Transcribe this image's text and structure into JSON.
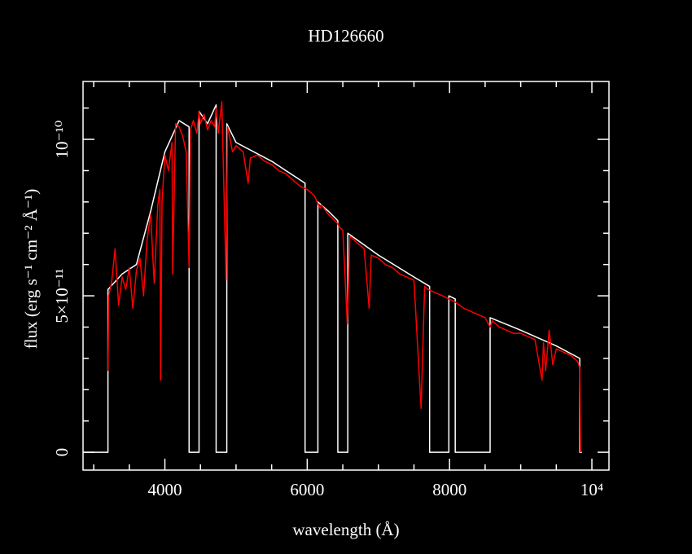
{
  "chart_data": {
    "type": "line",
    "title": "HD126660",
    "x_label": "wavelength (Å)",
    "y_label": "flux (erg s⁻¹ cm⁻² Å⁻¹)",
    "xlim": [
      2850,
      10240
    ],
    "ylim": [
      -5.7e-12,
      1.185e-10
    ],
    "xticks": [
      4000,
      6000,
      8000,
      {
        "value": 10000,
        "label": "10⁴"
      }
    ],
    "xminorticks": [
      3000,
      3500,
      4500,
      5000,
      5500,
      6500,
      7000,
      7500,
      8500,
      9000,
      9500
    ],
    "yticks": [
      0,
      {
        "value": 5e-11,
        "label": "5×10⁻¹¹"
      },
      {
        "value": 1e-10,
        "label": "10⁻¹⁰"
      }
    ],
    "yminorticks": [
      1e-11,
      2e-11,
      3e-11,
      4e-11,
      6e-11,
      7e-11,
      8e-11,
      9e-11,
      1.1e-10
    ],
    "series": [
      {
        "color": "#ffffff",
        "x": [
          2860,
          3200,
          3200,
          3400,
          3600,
          3800,
          4000,
          4200,
          4340,
          4340,
          4480,
          4480,
          4600,
          4720,
          4720,
          4870,
          4870,
          5000,
          5500,
          5970,
          5970,
          6150,
          6150,
          6300,
          6430,
          6430,
          6570,
          6570,
          7000,
          7500,
          7720,
          7720,
          7990,
          7990,
          8080,
          8080,
          8570,
          8570,
          9000,
          9500,
          9830,
          9830,
          9860
        ],
        "values": [
          0,
          0,
          5.2e-11,
          5.7e-11,
          6e-11,
          7.7e-11,
          9.6e-11,
          1.06e-10,
          1.04e-10,
          0,
          0,
          1.09e-10,
          1.05e-10,
          1.11e-10,
          0,
          0,
          1.05e-10,
          9.9e-11,
          9.3e-11,
          8.6e-11,
          0,
          0,
          8e-11,
          7.7e-11,
          7.4e-11,
          0,
          0,
          7e-11,
          6.3e-11,
          5.6e-11,
          5.3e-11,
          0,
          0,
          5e-11,
          4.9e-11,
          0,
          0,
          4.3e-11,
          3.9e-11,
          3.4e-11,
          3e-11,
          0,
          0
        ]
      },
      {
        "color": "#ff0000",
        "x": [
          3200,
          3210,
          3250,
          3300,
          3350,
          3400,
          3450,
          3500,
          3550,
          3600,
          3650,
          3700,
          3750,
          3800,
          3850,
          3900,
          3930,
          3940,
          3960,
          4000,
          4050,
          4100,
          4110,
          4150,
          4200,
          4250,
          4300,
          4340,
          4360,
          4400,
          4450,
          4480,
          4500,
          4550,
          4600,
          4650,
          4700,
          4720,
          4750,
          4800,
          4860,
          4880,
          4900,
          4950,
          5000,
          5100,
          5170,
          5200,
          5300,
          5400,
          5500,
          5600,
          5700,
          5800,
          5900,
          6000,
          6100,
          6180,
          6200,
          6300,
          6430,
          6450,
          6500,
          6563,
          6600,
          6700,
          6800,
          6870,
          6900,
          7000,
          7100,
          7200,
          7300,
          7400,
          7500,
          7600,
          7650,
          7700,
          7800,
          7900,
          7990,
          8080,
          8200,
          8300,
          8400,
          8500,
          8570,
          8600,
          8700,
          8800,
          8900,
          9000,
          9100,
          9200,
          9300,
          9320,
          9350,
          9400,
          9450,
          9500,
          9600,
          9700,
          9800,
          9830,
          9840
        ],
        "values": [
          2.6e-11,
          5e-11,
          5.4e-11,
          6.5e-11,
          4.7e-11,
          5.6e-11,
          5.2e-11,
          5.9e-11,
          4.6e-11,
          5.8e-11,
          6.2e-11,
          5e-11,
          6.8e-11,
          7.6e-11,
          5.4e-11,
          7.9e-11,
          8.4e-11,
          2.3e-11,
          8e-11,
          9.5e-11,
          9e-11,
          9.9e-11,
          5.7e-11,
          1.05e-10,
          1.04e-10,
          1.01e-10,
          9.6e-11,
          5.9e-11,
          1.03e-10,
          1.06e-10,
          1.02e-10,
          1.09e-10,
          1.05e-10,
          1.08e-10,
          1.03e-10,
          1.06e-10,
          1.04e-10,
          1.1e-10,
          1.02e-10,
          1.12e-10,
          5.5e-11,
          1.04e-10,
          1.02e-10,
          9.6e-11,
          9.8e-11,
          9.6e-11,
          8.6e-11,
          9.4e-11,
          9.5e-11,
          9.3e-11,
          9.2e-11,
          9e-11,
          8.9e-11,
          8.7e-11,
          8.5e-11,
          8.4e-11,
          8.2e-11,
          7.8e-11,
          7.9e-11,
          7.6e-11,
          7.3e-11,
          7.2e-11,
          7.1e-11,
          4.1e-11,
          6.9e-11,
          6.7e-11,
          6.5e-11,
          4.6e-11,
          6.3e-11,
          6.2e-11,
          6e-11,
          5.9e-11,
          5.7e-11,
          5.6e-11,
          5.5e-11,
          1.4e-11,
          5.3e-11,
          5.2e-11,
          5.1e-11,
          5e-11,
          4.9e-11,
          4.8e-11,
          4.6e-11,
          4.5e-11,
          4.4e-11,
          4.3e-11,
          4e-11,
          4.2e-11,
          4e-11,
          3.9e-11,
          3.8e-11,
          3.8e-11,
          3.7e-11,
          3.6e-11,
          2.3e-11,
          3.5e-11,
          2.6e-11,
          3.9e-11,
          2.8e-11,
          3.3e-11,
          3.2e-11,
          3.1e-11,
          2.9e-11,
          2.7e-11,
          0
        ]
      }
    ]
  }
}
